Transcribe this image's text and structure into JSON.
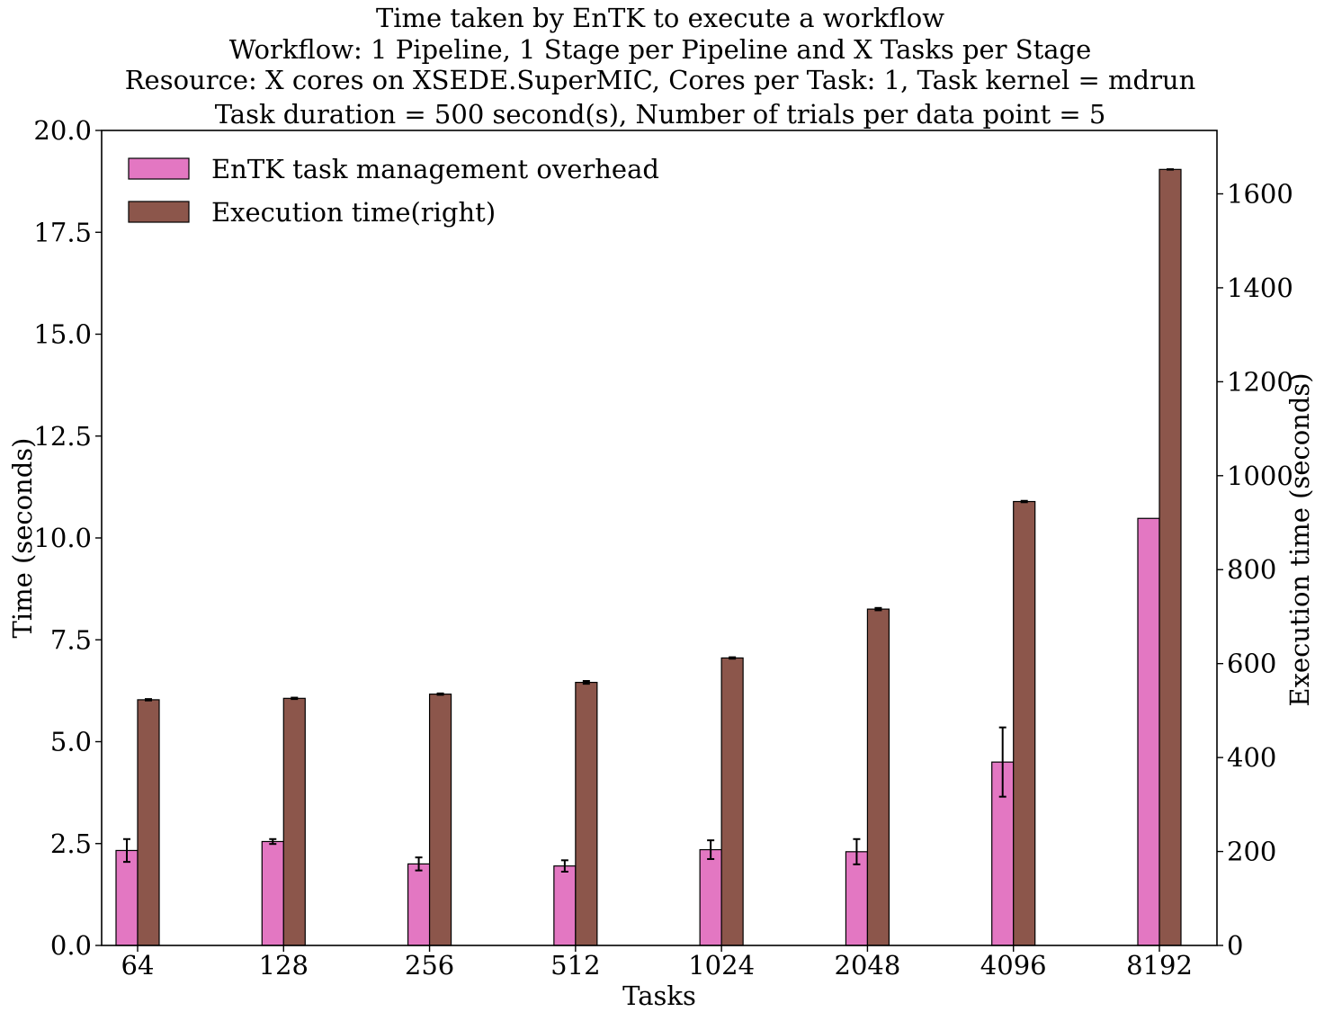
{
  "chart_data": {
    "type": "bar",
    "title_lines": [
      "Time taken by EnTK to execute a workflow",
      "Workflow: 1 Pipeline, 1 Stage per Pipeline and X Tasks per Stage",
      "Resource: X cores on XSEDE.SuperMIC, Cores per Task: 1, Task kernel = mdrun",
      "Task duration = 500 second(s), Number of trials per data point = 5"
    ],
    "xlabel": "Tasks",
    "ylabel": "Time (seconds)",
    "ylabel_right": "Execution time (seconds)",
    "categories": [
      "64",
      "128",
      "256",
      "512",
      "1024",
      "2048",
      "4096",
      "8192"
    ],
    "ylim": [
      0,
      20
    ],
    "ylim_right": [
      0,
      1735
    ],
    "yticks": [
      "0.0",
      "2.5",
      "5.0",
      "7.5",
      "10.0",
      "12.5",
      "15.0",
      "17.5",
      "20.0"
    ],
    "yticks_right": [
      "0",
      "200",
      "400",
      "600",
      "800",
      "1000",
      "1200",
      "1400",
      "1600"
    ],
    "legend_position": "upper-left",
    "grid": false,
    "series": [
      {
        "name": "EnTK task management overhead",
        "axis": "left",
        "color": "#e377c2",
        "values": [
          2.33,
          2.55,
          2.0,
          1.95,
          2.35,
          2.3,
          4.5,
          10.48
        ],
        "errors": [
          0.28,
          0.06,
          0.16,
          0.14,
          0.23,
          0.31,
          0.85,
          0.0
        ]
      },
      {
        "name": "Execution time(right)",
        "axis": "right",
        "color": "#8c564b",
        "values": [
          523,
          526,
          535,
          560,
          612,
          716,
          945,
          1652
        ],
        "errors": [
          1.5,
          1.5,
          1.5,
          3.0,
          1.5,
          2.5,
          1.5,
          0.5
        ]
      }
    ]
  }
}
